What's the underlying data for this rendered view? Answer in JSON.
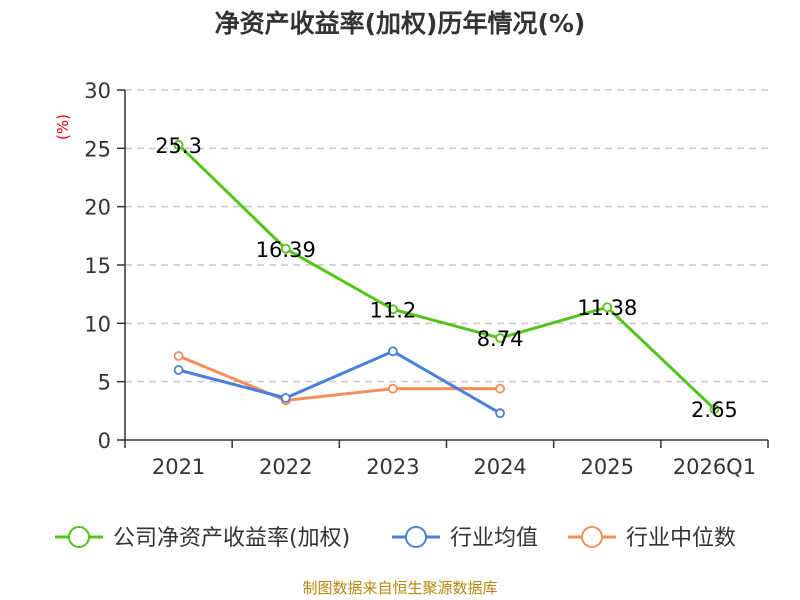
{
  "title": "净资产收益率(加权)历年情况(%)",
  "source_note": "制图数据来自恒生聚源数据库",
  "colors": {
    "company": "#52c41a",
    "industry_avg": "#4a7fdb",
    "industry_median": "#f58e5b",
    "grid": "#c8c8c8",
    "axis": "#333333",
    "unit": "#e60000",
    "source": "#b8860b"
  },
  "chart_data": {
    "type": "line",
    "title": "净资产收益率(加权)历年情况(%)",
    "categories": [
      "2021",
      "2022",
      "2023",
      "2024",
      "2025",
      "2026Q1"
    ],
    "ylabel": "(%)",
    "ylim": [
      0,
      30
    ],
    "yticks": [
      0,
      5,
      10,
      15,
      20,
      25,
      30
    ],
    "grid": true,
    "legend_position": "bottom",
    "series": [
      {
        "name": "公司净资产收益率(加权)",
        "color_key": "company",
        "values": [
          25.3,
          16.39,
          11.2,
          8.74,
          11.38,
          2.65
        ],
        "labels": [
          "25.3",
          "16.39",
          "11.2",
          "8.74",
          "11.38",
          "2.65"
        ]
      },
      {
        "name": "行业均值",
        "color_key": "industry_avg",
        "values": [
          6.0,
          3.6,
          7.6,
          2.3,
          null,
          null
        ],
        "labels": null
      },
      {
        "name": "行业中位数",
        "color_key": "industry_median",
        "values": [
          7.2,
          3.4,
          4.4,
          4.4,
          null,
          null
        ],
        "labels": null
      }
    ]
  }
}
